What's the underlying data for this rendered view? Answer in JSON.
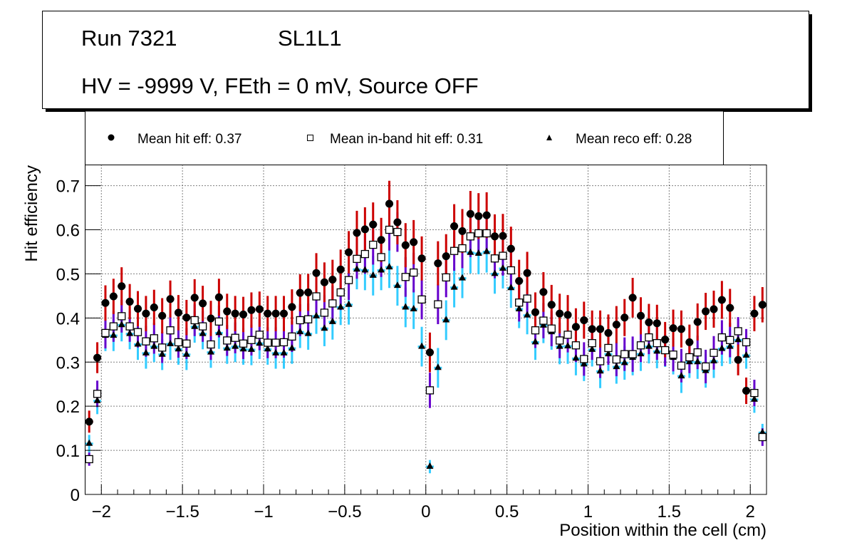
{
  "title_box": {
    "line1_left": "Run 7321",
    "line1_right": "SL1L1",
    "line2": "HV = -9999 V, FEth = 0 mV, Source OFF"
  },
  "legend": {
    "items": [
      {
        "marker": "filled-circle",
        "label": "Mean hit  eff: 0.37",
        "color": "#000000",
        "error_color": "#cc0000"
      },
      {
        "marker": "open-square",
        "label": "Mean in-band hit eff: 0.31",
        "color": "#000000",
        "error_color": "#6600cc"
      },
      {
        "marker": "filled-triangle",
        "label": "Mean reco eff: 0.28",
        "color": "#000000",
        "error_color": "#33ccff"
      }
    ]
  },
  "chart_data": {
    "type": "scatter",
    "title": "",
    "xlabel": "Position within the cell (cm)",
    "ylabel": "Hit efficiency",
    "xlim": [
      -2.1,
      2.1
    ],
    "ylim": [
      0,
      0.747
    ],
    "grid": true,
    "legend_position": "top",
    "xticks": [
      -2,
      -1.5,
      -1,
      -0.5,
      0,
      0.5,
      1,
      1.5,
      2
    ],
    "xtick_labels": [
      "−2",
      "−1.5",
      "−1",
      "−0.5",
      "0",
      "0.5",
      "1",
      "1.5",
      "2"
    ],
    "yticks": [
      0,
      0.1,
      0.2,
      0.3,
      0.4,
      0.5,
      0.6,
      0.7
    ],
    "ytick_labels": [
      "0",
      "0.1",
      "0.2",
      "0.3",
      "0.4",
      "0.5",
      "0.6",
      "0.7"
    ],
    "x_start": -2.075,
    "x_step": 0.05,
    "series": [
      {
        "name": "Mean hit  eff: 0.37",
        "marker": "filled-circle",
        "error_color": "#cc0000",
        "values": [
          0.165,
          0.31,
          0.434,
          0.449,
          0.472,
          0.437,
          0.421,
          0.41,
          0.424,
          0.405,
          0.443,
          0.412,
          0.401,
          0.446,
          0.433,
          0.399,
          0.447,
          0.415,
          0.41,
          0.408,
          0.418,
          0.42,
          0.41,
          0.41,
          0.41,
          0.425,
          0.457,
          0.458,
          0.502,
          0.481,
          0.487,
          0.51,
          0.549,
          0.593,
          0.601,
          0.612,
          0.577,
          0.659,
          0.617,
          0.565,
          0.572,
          0.535,
          0.322,
          0.524,
          0.54,
          0.608,
          0.597,
          0.636,
          0.631,
          0.633,
          0.585,
          0.586,
          0.557,
          0.484,
          0.502,
          0.413,
          0.459,
          0.43,
          0.41,
          0.407,
          0.38,
          0.395,
          0.375,
          0.375,
          0.366,
          0.385,
          0.401,
          0.446,
          0.405,
          0.39,
          0.388,
          0.351,
          0.377,
          0.375,
          0.345,
          0.391,
          0.415,
          0.42,
          0.441,
          0.423,
          0.305,
          0.235,
          0.41,
          0.43
        ],
        "errors": [
          0.025,
          0.035,
          0.04,
          0.04,
          0.043,
          0.04,
          0.04,
          0.04,
          0.04,
          0.04,
          0.042,
          0.04,
          0.04,
          0.042,
          0.04,
          0.04,
          0.042,
          0.04,
          0.04,
          0.04,
          0.04,
          0.04,
          0.04,
          0.04,
          0.04,
          0.04,
          0.042,
          0.042,
          0.045,
          0.045,
          0.045,
          0.045,
          0.048,
          0.05,
          0.05,
          0.05,
          0.05,
          0.052,
          0.05,
          0.05,
          0.05,
          0.05,
          0.045,
          0.05,
          0.05,
          0.05,
          0.05,
          0.052,
          0.052,
          0.052,
          0.05,
          0.05,
          0.05,
          0.048,
          0.048,
          0.045,
          0.045,
          0.045,
          0.045,
          0.045,
          0.042,
          0.042,
          0.042,
          0.042,
          0.042,
          0.042,
          0.042,
          0.045,
          0.042,
          0.042,
          0.042,
          0.04,
          0.042,
          0.042,
          0.04,
          0.042,
          0.042,
          0.042,
          0.043,
          0.043,
          0.035,
          0.03,
          0.04,
          0.04
        ]
      },
      {
        "name": "Mean in-band hit eff: 0.31",
        "marker": "open-square",
        "error_color": "#6600cc",
        "values": [
          0.08,
          0.228,
          0.366,
          0.381,
          0.404,
          0.381,
          0.368,
          0.347,
          0.354,
          0.333,
          0.372,
          0.345,
          0.342,
          0.395,
          0.381,
          0.34,
          0.392,
          0.349,
          0.355,
          0.342,
          0.35,
          0.362,
          0.344,
          0.344,
          0.345,
          0.358,
          0.395,
          0.397,
          0.449,
          0.412,
          0.433,
          0.458,
          0.486,
          0.534,
          0.545,
          0.566,
          0.538,
          0.6,
          0.595,
          0.493,
          0.503,
          0.442,
          0.236,
          0.431,
          0.492,
          0.552,
          0.558,
          0.585,
          0.592,
          0.592,
          0.535,
          0.541,
          0.508,
          0.435,
          0.444,
          0.372,
          0.394,
          0.376,
          0.349,
          0.362,
          0.338,
          0.307,
          0.343,
          0.302,
          0.332,
          0.306,
          0.318,
          0.318,
          0.338,
          0.356,
          0.343,
          0.327,
          0.317,
          0.292,
          0.311,
          0.322,
          0.29,
          0.321,
          0.356,
          0.35,
          0.37,
          0.345,
          0.23,
          0.13
        ],
        "errors": [
          0.015,
          0.03,
          0.035,
          0.035,
          0.037,
          0.035,
          0.035,
          0.035,
          0.035,
          0.035,
          0.036,
          0.035,
          0.035,
          0.036,
          0.035,
          0.035,
          0.036,
          0.035,
          0.035,
          0.035,
          0.035,
          0.035,
          0.035,
          0.035,
          0.035,
          0.035,
          0.036,
          0.036,
          0.04,
          0.04,
          0.04,
          0.04,
          0.045,
          0.045,
          0.045,
          0.045,
          0.045,
          0.047,
          0.045,
          0.045,
          0.045,
          0.045,
          0.04,
          0.045,
          0.045,
          0.045,
          0.045,
          0.047,
          0.047,
          0.047,
          0.045,
          0.045,
          0.045,
          0.043,
          0.043,
          0.04,
          0.04,
          0.04,
          0.04,
          0.04,
          0.038,
          0.038,
          0.038,
          0.038,
          0.038,
          0.038,
          0.038,
          0.04,
          0.038,
          0.038,
          0.038,
          0.036,
          0.038,
          0.038,
          0.036,
          0.038,
          0.038,
          0.038,
          0.039,
          0.039,
          0.032,
          0.03,
          0.03,
          0.02
        ]
      },
      {
        "name": "Mean reco eff: 0.28",
        "marker": "filled-triangle",
        "error_color": "#33ccff",
        "values": [
          0.115,
          0.212,
          0.36,
          0.36,
          0.384,
          0.364,
          0.34,
          0.32,
          0.335,
          0.317,
          0.341,
          0.329,
          0.317,
          0.38,
          0.364,
          0.322,
          0.366,
          0.331,
          0.335,
          0.329,
          0.328,
          0.342,
          0.329,
          0.32,
          0.32,
          0.331,
          0.368,
          0.364,
          0.404,
          0.376,
          0.391,
          0.424,
          0.43,
          0.51,
          0.508,
          0.496,
          0.508,
          0.515,
          0.473,
          0.424,
          0.42,
          0.335,
          0.063,
          0.287,
          0.395,
          0.469,
          0.49,
          0.548,
          0.546,
          0.55,
          0.5,
          0.512,
          0.468,
          0.42,
          0.406,
          0.345,
          0.383,
          0.368,
          0.335,
          0.336,
          0.308,
          0.295,
          0.328,
          0.279,
          0.318,
          0.289,
          0.298,
          0.31,
          0.318,
          0.335,
          0.324,
          0.325,
          0.31,
          0.268,
          0.3,
          0.3,
          0.28,
          0.302,
          0.33,
          0.335,
          0.35,
          0.315,
          0.215,
          0.14
        ],
        "errors": [
          0.02,
          0.03,
          0.035,
          0.035,
          0.037,
          0.035,
          0.035,
          0.035,
          0.035,
          0.035,
          0.036,
          0.035,
          0.035,
          0.036,
          0.035,
          0.035,
          0.036,
          0.035,
          0.035,
          0.035,
          0.035,
          0.035,
          0.035,
          0.035,
          0.035,
          0.035,
          0.036,
          0.036,
          0.04,
          0.04,
          0.04,
          0.04,
          0.045,
          0.045,
          0.045,
          0.045,
          0.045,
          0.047,
          0.045,
          0.045,
          0.045,
          0.045,
          0.015,
          0.045,
          0.045,
          0.045,
          0.045,
          0.047,
          0.047,
          0.047,
          0.045,
          0.045,
          0.045,
          0.043,
          0.043,
          0.04,
          0.04,
          0.04,
          0.04,
          0.04,
          0.038,
          0.038,
          0.038,
          0.038,
          0.038,
          0.038,
          0.038,
          0.04,
          0.038,
          0.038,
          0.038,
          0.036,
          0.038,
          0.038,
          0.036,
          0.038,
          0.038,
          0.038,
          0.039,
          0.039,
          0.032,
          0.03,
          0.03,
          0.02
        ]
      }
    ]
  }
}
